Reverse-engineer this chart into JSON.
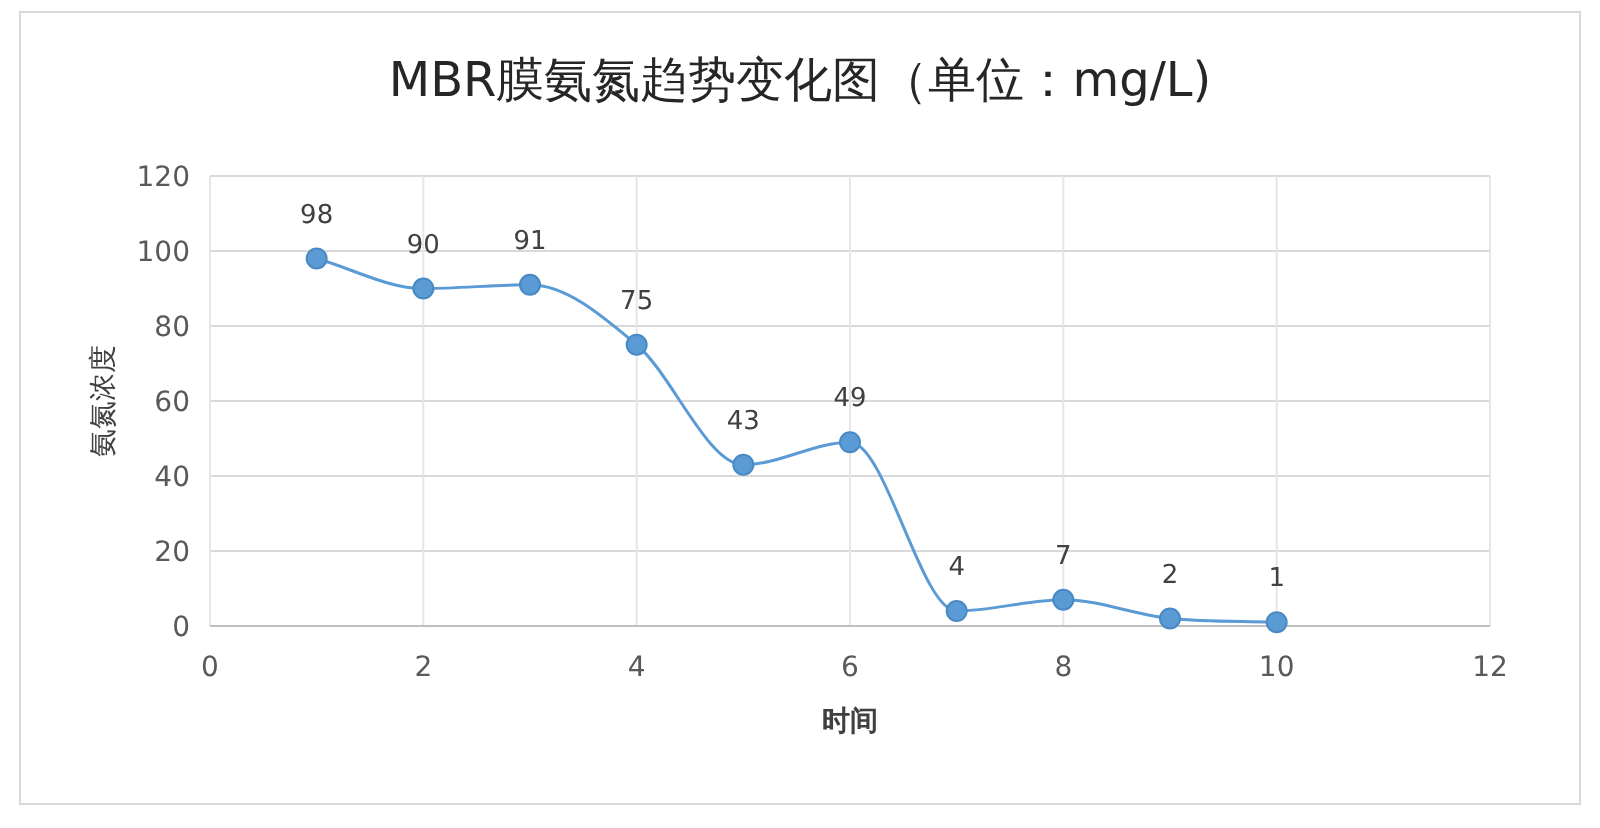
{
  "chart_data": {
    "type": "line",
    "title": "MBR膜氨氮趋势变化图（单位：mg/L)",
    "xlabel": "时间",
    "ylabel": "氨氮浓度",
    "x": [
      1,
      2,
      3,
      4,
      5,
      6,
      7,
      8,
      9,
      10
    ],
    "series": [
      {
        "color": "#5b9bd5",
        "values": [
          98,
          90,
          91,
          75,
          43,
          49,
          4,
          7,
          2,
          1
        ]
      }
    ],
    "xlim": [
      0,
      12
    ],
    "xticks": [
      0,
      2,
      4,
      6,
      8,
      10,
      12
    ],
    "ylim": [
      0,
      120
    ],
    "yticks": [
      0,
      20,
      40,
      60,
      80,
      100,
      120
    ],
    "grid": true,
    "marker": "circle",
    "line_style": "solid",
    "data_labels": true
  }
}
